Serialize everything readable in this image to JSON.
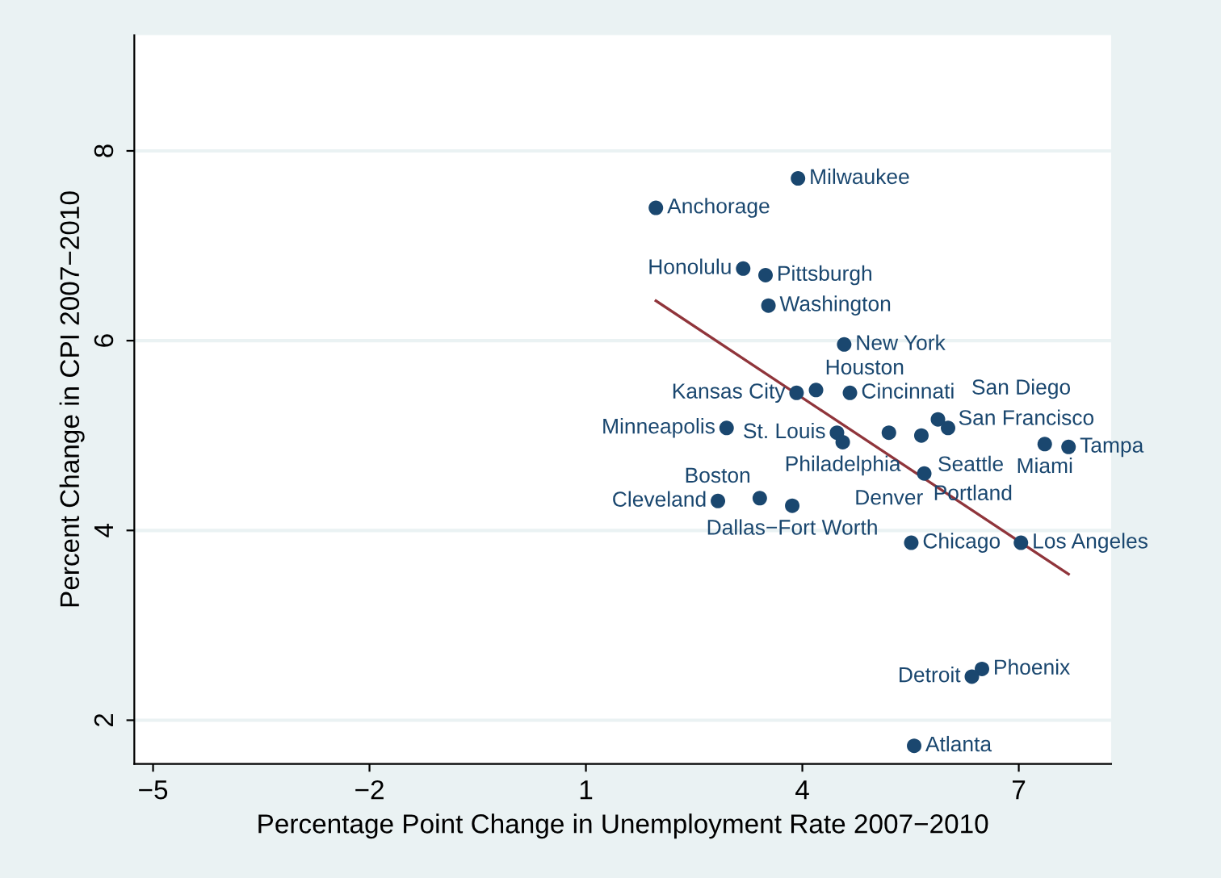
{
  "chart_data": {
    "type": "scatter",
    "xlabel": "Percentage Point Change in Unemployment Rate 2007−2010",
    "ylabel": "Percent Change in CPI 2007−2010",
    "xlim": [
      -5.26,
      8.28
    ],
    "ylim": [
      1.54,
      9.22
    ],
    "xticks": [
      {
        "value": -5,
        "label": "−5"
      },
      {
        "value": -2,
        "label": "−2"
      },
      1,
      4,
      7
    ],
    "yticks": [
      2,
      4,
      6,
      8
    ],
    "grid": "y",
    "legend": false,
    "marker": "circle",
    "series": [
      {
        "color": "#1a476f",
        "x": [
          3.94,
          1.97,
          3.18,
          3.49,
          3.53,
          4.58,
          3.92,
          4.19,
          4.66,
          2.95,
          4.48,
          4.56,
          5.2,
          5.65,
          5.88,
          6.02,
          7.36,
          7.69,
          5.69,
          2.83,
          3.41,
          3.86,
          5.51,
          7.03,
          6.49,
          6.35,
          5.55
        ],
        "values": [
          7.71,
          7.4,
          6.76,
          6.69,
          6.37,
          5.96,
          5.45,
          5.48,
          5.45,
          5.08,
          5.03,
          4.93,
          5.03,
          5.0,
          5.17,
          5.08,
          4.91,
          4.88,
          4.6,
          4.31,
          4.34,
          4.26,
          3.87,
          3.87,
          2.54,
          2.46,
          1.73
        ]
      },
      {
        "type": "line",
        "color": "#90353b",
        "x": [
          1.97,
          7.69
        ],
        "values": [
          6.42,
          3.54
        ],
        "marker": "none"
      }
    ],
    "annotations": [
      {
        "text": "Milwaukee",
        "x": 3.94,
        "y": 7.71
      },
      {
        "text": "Anchorage",
        "x": 1.97,
        "y": 7.4
      },
      {
        "text": "Honolulu",
        "x": 3.18,
        "y": 6.76
      },
      {
        "text": "Pittsburgh",
        "x": 3.49,
        "y": 6.69
      },
      {
        "text": "Washington",
        "x": 3.53,
        "y": 6.37
      },
      {
        "text": "New York",
        "x": 4.58,
        "y": 5.96
      },
      {
        "text": "Kansas City",
        "x": 3.92,
        "y": 5.45
      },
      {
        "text": "Houston",
        "x": 4.19,
        "y": 5.48
      },
      {
        "text": "Cincinnati",
        "x": 4.66,
        "y": 5.45
      },
      {
        "text": "Minneapolis",
        "x": 2.95,
        "y": 5.08
      },
      {
        "text": "St. Louis",
        "x": 4.48,
        "y": 5.03
      },
      {
        "text": "Philadelphia",
        "x": 4.56,
        "y": 4.93
      },
      {
        "text": "Denver",
        "x": 5.2,
        "y": 5.03
      },
      {
        "text": "Seattle",
        "x": 5.65,
        "y": 5.0
      },
      {
        "text": "San Francisco",
        "x": 5.88,
        "y": 5.17
      },
      {
        "text": "San Diego",
        "x": 6.02,
        "y": 5.08
      },
      {
        "text": "Miami",
        "x": 7.36,
        "y": 4.91
      },
      {
        "text": "Tampa",
        "x": 7.69,
        "y": 4.88
      },
      {
        "text": "Portland",
        "x": 5.69,
        "y": 4.6
      },
      {
        "text": "Cleveland",
        "x": 2.83,
        "y": 4.31
      },
      {
        "text": "Boston",
        "x": 3.41,
        "y": 4.34
      },
      {
        "text": "Dallas−Fort Worth",
        "x": 3.86,
        "y": 4.26
      },
      {
        "text": "Chicago",
        "x": 5.51,
        "y": 3.87
      },
      {
        "text": "Los Angeles",
        "x": 7.03,
        "y": 3.87
      },
      {
        "text": "Phoenix",
        "x": 6.49,
        "y": 2.54
      },
      {
        "text": "Detroit",
        "x": 6.35,
        "y": 2.46
      },
      {
        "text": "Atlanta",
        "x": 5.55,
        "y": 1.73
      }
    ]
  }
}
